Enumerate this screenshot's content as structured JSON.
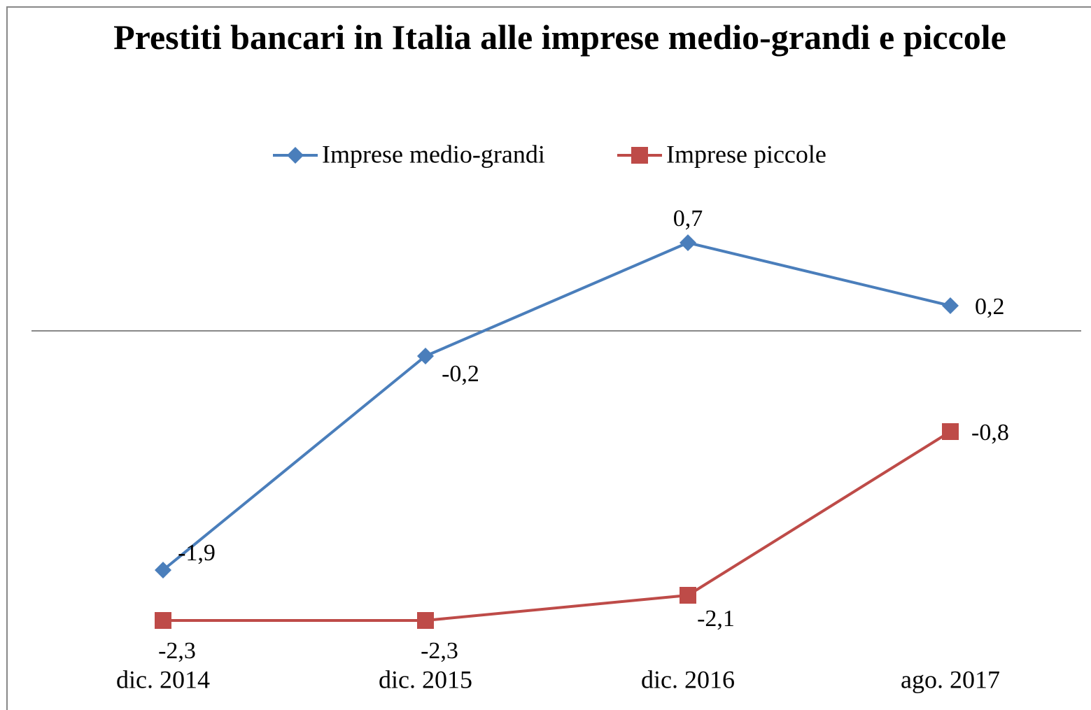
{
  "chart_data": {
    "type": "line",
    "title": "Prestiti bancari in Italia alle imprese medio-grandi e piccole",
    "categories": [
      "dic. 2014",
      "dic. 2015",
      "dic. 2016",
      "ago. 2017"
    ],
    "series": [
      {
        "name": "Imprese medio-grandi",
        "color": "#4a7ebb",
        "marker": "diamond",
        "values": [
          -1.9,
          -0.2,
          0.7,
          0.2
        ],
        "value_labels": [
          "-1,9",
          "-0,2",
          "0,7",
          "0,2"
        ]
      },
      {
        "name": "Imprese piccole",
        "color": "#be4b48",
        "marker": "square",
        "values": [
          -2.3,
          -2.3,
          -2.1,
          -0.8
        ],
        "value_labels": [
          "-2,3",
          "-2,3",
          "-2,1",
          "-0,8"
        ]
      }
    ],
    "ylim": [
      -2.5,
      1
    ],
    "legend": "top"
  }
}
